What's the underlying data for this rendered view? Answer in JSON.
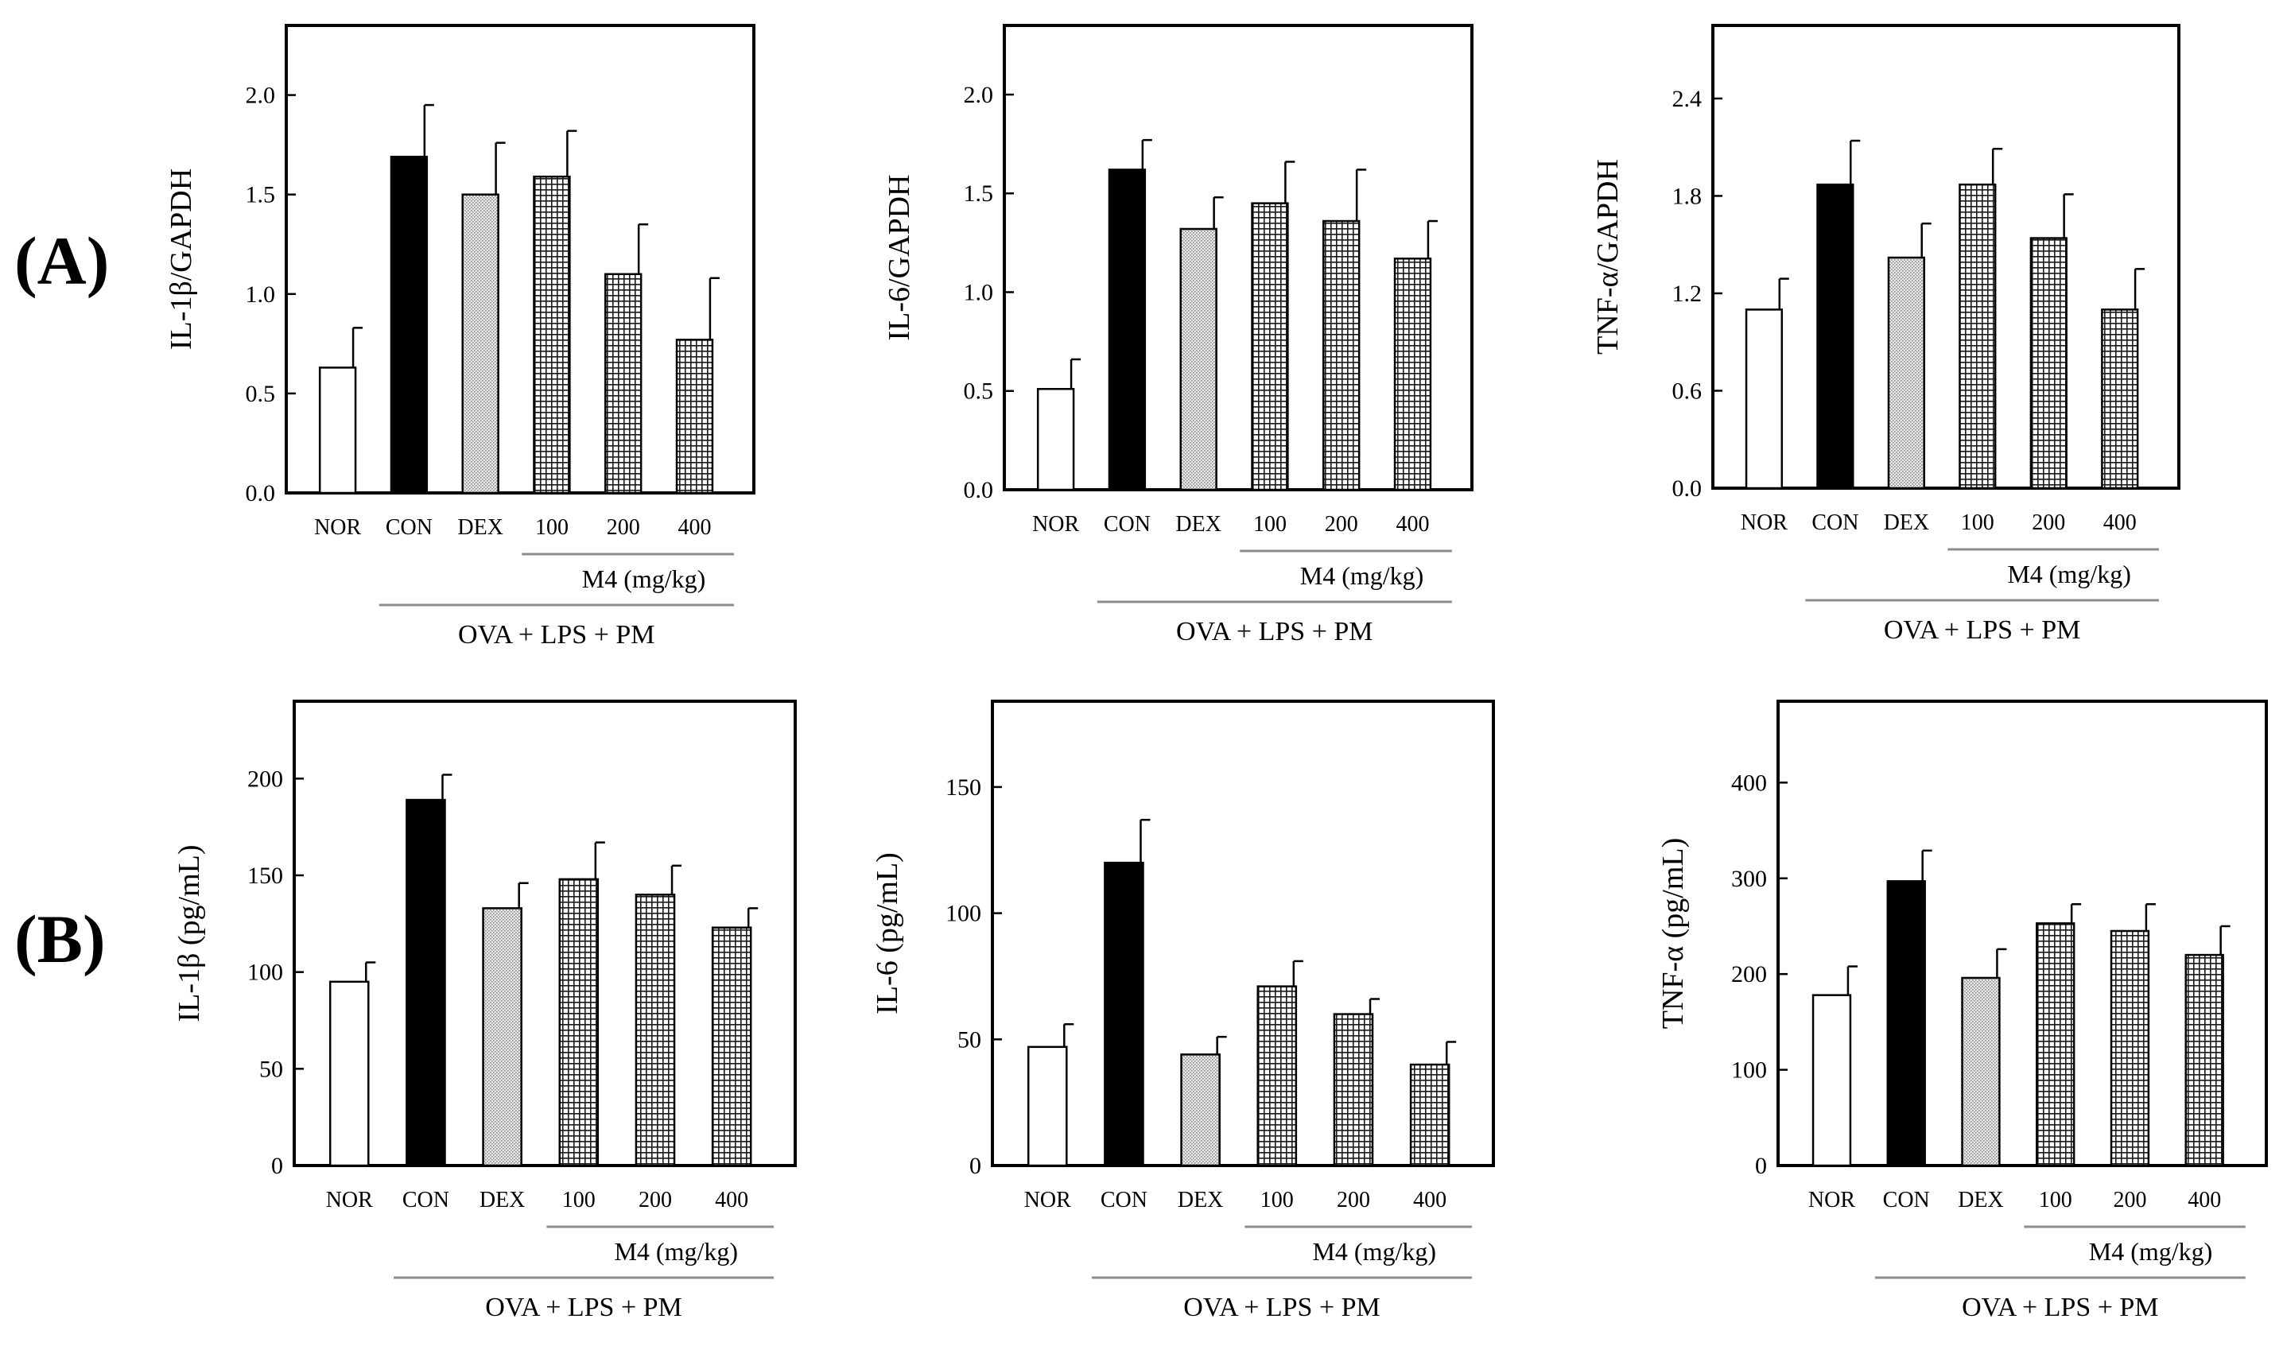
{
  "panels": [
    {
      "label": "(A)"
    },
    {
      "label": "(B)"
    }
  ],
  "colors": {
    "frame": "#000000",
    "nor": "#ffffff",
    "con": "#000000",
    "dex": "#d4d4d4",
    "m4_grid": "#1a1a1a",
    "underline": "#8c8c8c"
  },
  "chart_data": [
    {
      "type": "bar",
      "row": 0,
      "categories": [
        "NOR",
        "CON",
        "DEX",
        "100",
        "200",
        "400"
      ],
      "values": [
        0.63,
        1.69,
        1.5,
        1.59,
        1.1,
        0.77
      ],
      "errors": [
        0.2,
        0.26,
        0.26,
        0.23,
        0.25,
        0.31
      ],
      "yticks": [
        0.0,
        0.5,
        1.0,
        1.5,
        2.0
      ],
      "ytick_labels": [
        "0.0",
        "0.5",
        "1.0",
        "1.5",
        "2.0"
      ],
      "ylim": [
        0,
        2.35
      ],
      "ylabel": "IL-1β/GAPDH",
      "sub_group_label": "M4 (mg/kg)",
      "group_label": "OVA + LPS + PM",
      "fills": [
        "nor",
        "con",
        "dex",
        "m4",
        "m4",
        "m4"
      ]
    },
    {
      "type": "bar",
      "row": 0,
      "categories": [
        "NOR",
        "CON",
        "DEX",
        "100",
        "200",
        "400"
      ],
      "values": [
        0.51,
        1.62,
        1.32,
        1.45,
        1.36,
        1.17
      ],
      "errors": [
        0.15,
        0.15,
        0.16,
        0.21,
        0.26,
        0.19
      ],
      "yticks": [
        0.0,
        0.5,
        1.0,
        1.5,
        2.0
      ],
      "ytick_labels": [
        "0.0",
        "0.5",
        "1.0",
        "1.5",
        "2.0"
      ],
      "ylim": [
        0,
        2.35
      ],
      "ylabel": "IL-6/GAPDH",
      "sub_group_label": "M4 (mg/kg)",
      "group_label": "OVA + LPS + PM",
      "fills": [
        "nor",
        "con",
        "dex",
        "m4",
        "m4",
        "m4"
      ]
    },
    {
      "type": "bar",
      "row": 0,
      "categories": [
        "NOR",
        "CON",
        "DEX",
        "100",
        "200",
        "400"
      ],
      "values": [
        1.1,
        1.87,
        1.42,
        1.87,
        1.54,
        1.1
      ],
      "errors": [
        0.19,
        0.27,
        0.21,
        0.22,
        0.27,
        0.25
      ],
      "yticks": [
        0.0,
        0.6,
        1.2,
        1.8,
        2.4
      ],
      "ytick_labels": [
        "0.0",
        "0.6",
        "1.2",
        "1.8",
        "2.4"
      ],
      "ylim": [
        0,
        2.85
      ],
      "ylabel": "TNF-α/GAPDH",
      "sub_group_label": "M4 (mg/kg)",
      "group_label": "OVA + LPS + PM",
      "fills": [
        "nor",
        "con",
        "dex",
        "m4",
        "m4",
        "m4"
      ]
    },
    {
      "type": "bar",
      "row": 1,
      "categories": [
        "NOR",
        "CON",
        "DEX",
        "100",
        "200",
        "400"
      ],
      "values": [
        95,
        189,
        133,
        148,
        140,
        123
      ],
      "errors": [
        10,
        13,
        13,
        19,
        15,
        10
      ],
      "yticks": [
        0,
        50,
        100,
        150,
        200
      ],
      "ytick_labels": [
        "0",
        "50",
        "100",
        "150",
        "200"
      ],
      "ylim": [
        0,
        240
      ],
      "ylabel": "IL-1β   (pg/mL)",
      "sub_group_label": "M4 (mg/kg)",
      "group_label": "OVA + LPS + PM",
      "fills": [
        "nor",
        "con",
        "dex",
        "m4",
        "m4",
        "m4"
      ]
    },
    {
      "type": "bar",
      "row": 1,
      "categories": [
        "NOR",
        "CON",
        "DEX",
        "100",
        "200",
        "400"
      ],
      "values": [
        47,
        120,
        44,
        71,
        60,
        40
      ],
      "errors": [
        9,
        17,
        7,
        10,
        6,
        9
      ],
      "yticks": [
        0,
        50,
        100,
        150
      ],
      "ytick_labels": [
        "0",
        "50",
        "100",
        "150"
      ],
      "ylim": [
        0,
        184
      ],
      "ylabel": "IL-6 (pg/mL)",
      "sub_group_label": "M4 (mg/kg)",
      "group_label": "OVA + LPS + PM",
      "fills": [
        "nor",
        "con",
        "dex",
        "m4",
        "m4",
        "m4"
      ]
    },
    {
      "type": "bar",
      "row": 1,
      "categories": [
        "NOR",
        "CON",
        "DEX",
        "100",
        "200",
        "400"
      ],
      "values": [
        178,
        297,
        196,
        253,
        245,
        220
      ],
      "errors": [
        30,
        32,
        30,
        20,
        28,
        30
      ],
      "yticks": [
        0,
        100,
        200,
        300,
        400
      ],
      "ytick_labels": [
        "0",
        "100",
        "200",
        "300",
        "400"
      ],
      "ylim": [
        0,
        485
      ],
      "ylabel": "TNF-α (pg/mL)",
      "sub_group_label": "M4 (mg/kg)",
      "group_label": "OVA + LPS + PM",
      "fills": [
        "nor",
        "con",
        "dex",
        "m4",
        "m4",
        "m4"
      ]
    }
  ]
}
